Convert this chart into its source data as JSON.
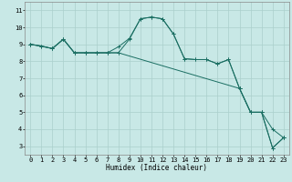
{
  "xlabel": "Humidex (Indice chaleur)",
  "xlim": [
    -0.5,
    23.5
  ],
  "ylim": [
    2.5,
    11.5
  ],
  "xticks": [
    0,
    1,
    2,
    3,
    4,
    5,
    6,
    7,
    8,
    9,
    10,
    11,
    12,
    13,
    14,
    15,
    16,
    17,
    18,
    19,
    20,
    21,
    22,
    23
  ],
  "yticks": [
    3,
    4,
    5,
    6,
    7,
    8,
    9,
    10,
    11
  ],
  "bg_color": "#c8e8e6",
  "grid_color": "#aacfcc",
  "line_color": "#1a6e62",
  "lines": [
    {
      "x": [
        0,
        1,
        2,
        3,
        4,
        5,
        6,
        7,
        8,
        9,
        10,
        11,
        12,
        13,
        14,
        15,
        16,
        17,
        18,
        19,
        20,
        21,
        22,
        23
      ],
      "y": [
        9.0,
        8.9,
        8.75,
        9.3,
        8.5,
        8.5,
        8.5,
        8.5,
        8.5,
        9.3,
        10.5,
        10.6,
        10.5,
        9.6,
        8.15,
        8.1,
        8.1,
        7.85,
        8.1,
        6.4,
        5.0,
        5.0,
        4.0,
        3.5
      ]
    },
    {
      "x": [
        0,
        1,
        2,
        3,
        4,
        5,
        6,
        7,
        8,
        9,
        10,
        11,
        12,
        13,
        14,
        15,
        16,
        17,
        18,
        19,
        20,
        21,
        22,
        23
      ],
      "y": [
        9.0,
        8.9,
        8.75,
        9.3,
        8.5,
        8.5,
        8.5,
        8.5,
        8.85,
        9.35,
        10.5,
        10.6,
        10.5,
        9.6,
        8.15,
        8.1,
        8.1,
        7.85,
        8.1,
        6.4,
        5.0,
        5.0,
        2.9,
        3.5
      ]
    },
    {
      "x": [
        0,
        2,
        3,
        4,
        5,
        6,
        7,
        8,
        19,
        20,
        21,
        22,
        23
      ],
      "y": [
        9.0,
        8.75,
        9.3,
        8.5,
        8.5,
        8.5,
        8.5,
        8.5,
        6.4,
        5.0,
        5.0,
        2.9,
        3.5
      ]
    }
  ]
}
